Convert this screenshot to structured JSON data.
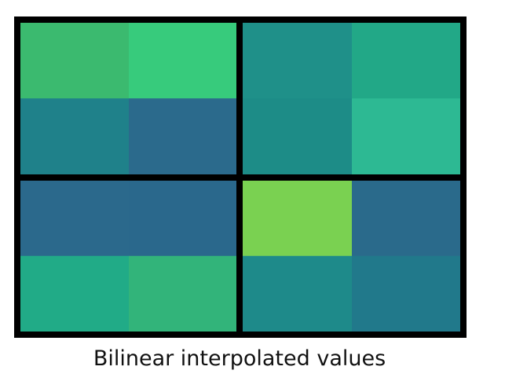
{
  "caption": "Bilinear interpolated values",
  "grid": {
    "rows": 4,
    "cols": 4,
    "block_size": 2,
    "frame_color": "#000000",
    "cells": [
      [
        "#3bba6f",
        "#37cb7c",
        "#1f9089",
        "#22a887"
      ],
      [
        "#1f818a",
        "#2b6a8c",
        "#1d8c87",
        "#2db993"
      ],
      [
        "#2b698c",
        "#2a688c",
        "#7ad151",
        "#2a6a8b"
      ],
      [
        "#21ab87",
        "#32b47a",
        "#1e8a8a",
        "#21798b"
      ]
    ]
  }
}
